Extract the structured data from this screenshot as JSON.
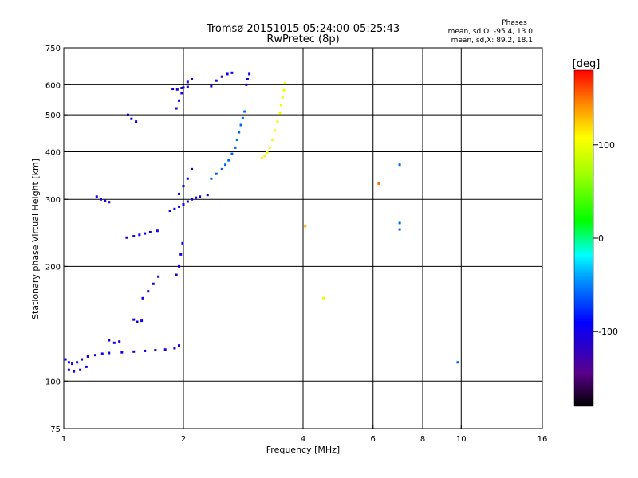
{
  "chart_data": {
    "type": "scatter",
    "title": "Tromsø 20151015 05:24:00-05:25:43",
    "subtitle": "RwPretec (8p)",
    "xlabel": "Frequency [MHz]",
    "ylabel": "Stationary phase Virtual Height [km]",
    "x_scale": "log",
    "y_scale": "log",
    "xlim": [
      1,
      16
    ],
    "ylim": [
      75,
      750
    ],
    "x_ticks": [
      1,
      2,
      4,
      6,
      8,
      10,
      16
    ],
    "y_ticks": [
      75,
      100,
      200,
      300,
      400,
      500,
      600,
      750
    ],
    "x_gridlines": [
      2,
      4,
      6,
      8,
      10
    ],
    "y_gridlines": [
      100,
      200,
      300,
      400,
      500,
      600
    ],
    "grid": true,
    "phase_stats": {
      "heading": "Phases",
      "line_o": "mean, sd,O: -95.4, 13.0",
      "line_x": "mean, sd,X:  89.2, 18.1"
    },
    "colorbar": {
      "label": "[deg]",
      "range": [
        -180,
        180
      ],
      "ticks": [
        100,
        0,
        -100
      ]
    },
    "traces": [
      {
        "phase": -100,
        "points": [
          [
            1.01,
            114
          ],
          [
            1.03,
            112
          ],
          [
            1.05,
            111
          ],
          [
            1.08,
            112
          ],
          [
            1.11,
            114
          ],
          [
            1.15,
            116
          ],
          [
            1.2,
            117
          ],
          [
            1.25,
            118
          ],
          [
            1.3,
            118.5
          ],
          [
            1.4,
            119
          ],
          [
            1.5,
            119.5
          ],
          [
            1.6,
            120
          ],
          [
            1.7,
            120.5
          ],
          [
            1.8,
            121
          ],
          [
            1.9,
            122
          ],
          [
            1.95,
            124
          ]
        ]
      },
      {
        "phase": -100,
        "points": [
          [
            1.03,
            107
          ],
          [
            1.06,
            106
          ],
          [
            1.1,
            107
          ],
          [
            1.14,
            109
          ]
        ]
      },
      {
        "phase": -100,
        "points": [
          [
            1.21,
            305
          ],
          [
            1.24,
            300
          ],
          [
            1.27,
            297
          ],
          [
            1.3,
            295
          ]
        ]
      },
      {
        "phase": -100,
        "points": [
          [
            1.44,
            238
          ],
          [
            1.5,
            240
          ],
          [
            1.55,
            242
          ],
          [
            1.6,
            244
          ],
          [
            1.65,
            246
          ],
          [
            1.72,
            248
          ]
        ]
      },
      {
        "phase": -100,
        "points": [
          [
            1.45,
            500
          ],
          [
            1.48,
            488
          ],
          [
            1.52,
            480
          ]
        ]
      },
      {
        "phase": -100,
        "points": [
          [
            1.5,
            145
          ],
          [
            1.53,
            143
          ],
          [
            1.57,
            144
          ]
        ]
      },
      {
        "phase": -100,
        "points": [
          [
            1.58,
            165
          ],
          [
            1.63,
            172
          ],
          [
            1.68,
            180
          ],
          [
            1.73,
            188
          ]
        ]
      },
      {
        "phase": -100,
        "points": [
          [
            1.3,
            128
          ],
          [
            1.34,
            126
          ],
          [
            1.38,
            127
          ]
        ]
      },
      {
        "phase": -100,
        "points": [
          [
            1.85,
            280
          ],
          [
            1.9,
            283
          ],
          [
            1.95,
            287
          ],
          [
            2.0,
            291
          ],
          [
            2.05,
            296
          ],
          [
            2.1,
            300
          ],
          [
            2.15,
            303
          ],
          [
            2.2,
            305
          ],
          [
            2.3,
            308
          ]
        ]
      },
      {
        "phase": -90,
        "points": [
          [
            1.95,
            310
          ],
          [
            2.0,
            325
          ],
          [
            2.05,
            340
          ],
          [
            2.1,
            360
          ]
        ]
      },
      {
        "phase": -100,
        "points": [
          [
            1.92,
            520
          ],
          [
            1.95,
            545
          ],
          [
            1.98,
            570
          ],
          [
            2.0,
            590
          ],
          [
            2.05,
            610
          ],
          [
            2.1,
            620
          ]
        ]
      },
      {
        "phase": -100,
        "points": [
          [
            1.88,
            585
          ],
          [
            1.93,
            583
          ],
          [
            1.98,
            588
          ],
          [
            2.05,
            592
          ]
        ]
      },
      {
        "phase": -100,
        "points": [
          [
            1.92,
            190
          ],
          [
            1.95,
            200
          ],
          [
            1.97,
            215
          ],
          [
            1.99,
            230
          ]
        ]
      },
      {
        "phase": -100,
        "points": [
          [
            2.35,
            595
          ],
          [
            2.42,
            615
          ],
          [
            2.5,
            630
          ],
          [
            2.58,
            640
          ],
          [
            2.65,
            645
          ]
        ]
      },
      {
        "phase": -100,
        "points": [
          [
            2.88,
            600
          ],
          [
            2.9,
            620
          ],
          [
            2.93,
            640
          ]
        ]
      },
      {
        "phase": -60,
        "points": [
          [
            2.35,
            340
          ],
          [
            2.42,
            350
          ],
          [
            2.5,
            360
          ],
          [
            2.55,
            370
          ],
          [
            2.6,
            380
          ],
          [
            2.65,
            395
          ],
          [
            2.7,
            410
          ],
          [
            2.73,
            430
          ],
          [
            2.76,
            450
          ],
          [
            2.79,
            470
          ],
          [
            2.82,
            490
          ],
          [
            2.85,
            510
          ]
        ]
      },
      {
        "phase": 100,
        "points": [
          [
            3.15,
            385
          ],
          [
            3.2,
            390
          ],
          [
            3.25,
            398
          ],
          [
            3.3,
            410
          ],
          [
            3.35,
            430
          ],
          [
            3.4,
            455
          ],
          [
            3.45,
            480
          ],
          [
            3.5,
            505
          ],
          [
            3.52,
            530
          ],
          [
            3.55,
            555
          ],
          [
            3.58,
            580
          ],
          [
            3.6,
            605
          ]
        ]
      },
      {
        "phase": 150,
        "points": [
          [
            6.2,
            330
          ]
        ]
      },
      {
        "phase": -60,
        "points": [
          [
            7.0,
            250
          ],
          [
            7.0,
            260
          ],
          [
            7.0,
            370
          ]
        ]
      },
      {
        "phase": -60,
        "points": [
          [
            9.8,
            112
          ]
        ]
      },
      {
        "phase": 130,
        "points": [
          [
            4.05,
            255
          ]
        ]
      },
      {
        "phase": 100,
        "points": [
          [
            4.5,
            165
          ]
        ]
      }
    ]
  }
}
